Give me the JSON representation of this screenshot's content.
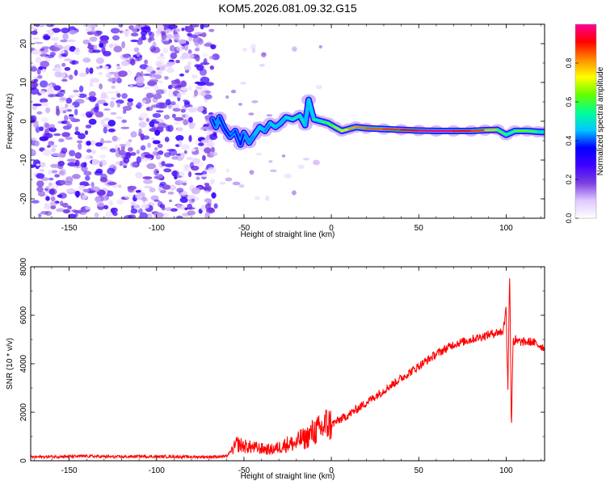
{
  "page_title": "KOM5.2026.081.09.32.G15",
  "colorbar": {
    "label": "Normalized spectral amplitude",
    "ticks": [
      0.0,
      0.2,
      0.4,
      0.6,
      0.8
    ],
    "tick_labels": [
      "0.0",
      "0.2",
      "0.4",
      "0.6",
      "0.8"
    ],
    "range": [
      0,
      1
    ],
    "colormap": [
      "#ffffff",
      "#e0c8ff",
      "#7b3fe0",
      "#3f00ff",
      "#0000ff",
      "#00c8ff",
      "#00ff96",
      "#64ff00",
      "#ffff00",
      "#ff8c00",
      "#ff0000",
      "#ff0096"
    ]
  },
  "chart_data": [
    {
      "type": "heatmap",
      "title": "",
      "xlabel": "Height of straight line (km)",
      "ylabel": "Frequency (Hz)",
      "xlim": [
        -172,
        122
      ],
      "ylim": [
        -25,
        25
      ],
      "xticks": [
        -150,
        -100,
        -50,
        0,
        50,
        100
      ],
      "xtick_labels": [
        "-150",
        "-100",
        "-50",
        "0",
        "50",
        "100"
      ],
      "yticks": [
        -20,
        -10,
        0,
        10,
        20
      ],
      "ytick_labels": [
        "-20",
        "-10",
        "0",
        "10",
        "20"
      ],
      "noise_region_x": [
        -172,
        -66
      ],
      "noise_level": 0.12,
      "trace": [
        {
          "x": -68,
          "y": 0.5,
          "a": 0.3
        },
        {
          "x": -66,
          "y": -1.5,
          "a": 0.45
        },
        {
          "x": -64,
          "y": 1.0,
          "a": 0.4
        },
        {
          "x": -61,
          "y": -2.0,
          "a": 0.35
        },
        {
          "x": -58,
          "y": -4.0,
          "a": 0.35
        },
        {
          "x": -55,
          "y": -2.5,
          "a": 0.45
        },
        {
          "x": -52,
          "y": -6.0,
          "a": 0.3
        },
        {
          "x": -50,
          "y": -3.0,
          "a": 0.4
        },
        {
          "x": -47,
          "y": -5.5,
          "a": 0.45
        },
        {
          "x": -44,
          "y": -3.5,
          "a": 0.4
        },
        {
          "x": -41,
          "y": -1.5,
          "a": 0.5
        },
        {
          "x": -38,
          "y": -2.5,
          "a": 0.4
        },
        {
          "x": -35,
          "y": -0.5,
          "a": 0.45
        },
        {
          "x": -32,
          "y": -1.5,
          "a": 0.5
        },
        {
          "x": -29,
          "y": -0.5,
          "a": 0.4
        },
        {
          "x": -26,
          "y": 1.0,
          "a": 0.5
        },
        {
          "x": -22,
          "y": 0.5,
          "a": 0.5
        },
        {
          "x": -18,
          "y": 1.5,
          "a": 0.55
        },
        {
          "x": -15,
          "y": -1.0,
          "a": 0.45
        },
        {
          "x": -13,
          "y": 5.5,
          "a": 0.45
        },
        {
          "x": -10,
          "y": 0.5,
          "a": 0.5
        },
        {
          "x": -6,
          "y": 0.0,
          "a": 0.55
        },
        {
          "x": -2,
          "y": -0.5,
          "a": 0.6
        },
        {
          "x": 2,
          "y": -1.5,
          "a": 0.65
        },
        {
          "x": 6,
          "y": -2.5,
          "a": 0.7
        },
        {
          "x": 10,
          "y": -2.0,
          "a": 0.8
        },
        {
          "x": 14,
          "y": -1.5,
          "a": 0.8
        },
        {
          "x": 20,
          "y": -1.8,
          "a": 0.85
        },
        {
          "x": 30,
          "y": -2.0,
          "a": 0.85
        },
        {
          "x": 40,
          "y": -2.2,
          "a": 0.9
        },
        {
          "x": 50,
          "y": -2.4,
          "a": 0.95
        },
        {
          "x": 60,
          "y": -2.5,
          "a": 1.0
        },
        {
          "x": 70,
          "y": -2.5,
          "a": 0.95
        },
        {
          "x": 80,
          "y": -2.5,
          "a": 0.9
        },
        {
          "x": 88,
          "y": -2.3,
          "a": 0.85
        },
        {
          "x": 95,
          "y": -2.2,
          "a": 0.7
        },
        {
          "x": 100,
          "y": -3.5,
          "a": 0.5
        },
        {
          "x": 105,
          "y": -2.5,
          "a": 0.6
        },
        {
          "x": 112,
          "y": -2.5,
          "a": 0.65
        },
        {
          "x": 118,
          "y": -2.7,
          "a": 0.55
        },
        {
          "x": 122,
          "y": -2.8,
          "a": 0.45
        }
      ]
    },
    {
      "type": "line",
      "title": "",
      "xlabel": "Height of straight line (km)",
      "ylabel": "SNR (10 * v/v)",
      "xlim": [
        -172,
        122
      ],
      "ylim": [
        0,
        8000
      ],
      "xticks": [
        -150,
        -100,
        -50,
        0,
        50,
        100
      ],
      "xtick_labels": [
        "-150",
        "-100",
        "-50",
        "0",
        "50",
        "100"
      ],
      "yticks": [
        0,
        2000,
        4000,
        6000,
        8000
      ],
      "ytick_labels": [
        "0",
        "2000",
        "4000",
        "6000",
        "8000"
      ],
      "color": "#ff0000",
      "series": [
        {
          "x": [
            -172,
            -160,
            -150,
            -140,
            -130,
            -120,
            -110,
            -100,
            -90,
            -80,
            -70,
            -60,
            -56,
            -54,
            -50,
            -45,
            -40,
            -35,
            -30,
            -25,
            -20,
            -18,
            -15,
            -12,
            -10,
            -6,
            -3,
            0,
            5,
            10,
            20,
            30,
            40,
            50,
            60,
            70,
            80,
            85,
            90,
            95,
            98,
            100,
            101,
            102,
            103,
            104,
            105,
            110,
            115,
            122
          ],
          "y": [
            150,
            170,
            180,
            190,
            170,
            160,
            180,
            170,
            170,
            160,
            160,
            180,
            500,
            700,
            600,
            550,
            500,
            450,
            550,
            700,
            700,
            900,
            900,
            1100,
            1200,
            1300,
            1500,
            1500,
            1700,
            1900,
            2400,
            2900,
            3400,
            3900,
            4400,
            4800,
            5000,
            5100,
            5200,
            5300,
            5300,
            6200,
            3000,
            8000,
            1300,
            5100,
            4900,
            4900,
            4900,
            4650
          ]
        }
      ]
    }
  ]
}
